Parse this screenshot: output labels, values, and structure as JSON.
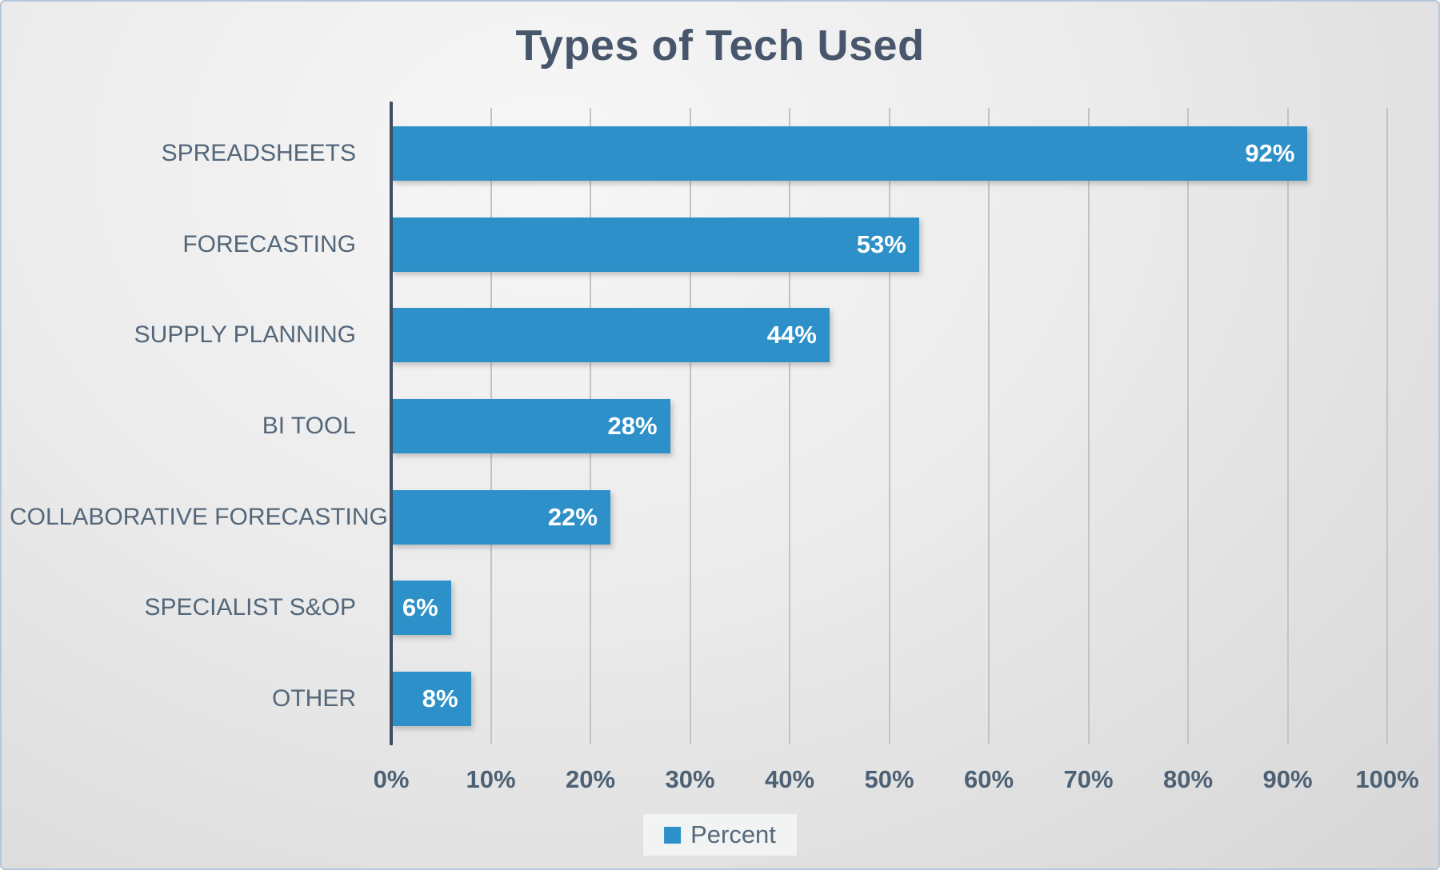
{
  "chart_data": {
    "type": "bar",
    "orientation": "horizontal",
    "title": "Types of Tech Used",
    "categories": [
      "SPREADSHEETS",
      "FORECASTING",
      "SUPPLY PLANNING",
      "BI TOOL",
      "COLLABORATIVE FORECASTING",
      "SPECIALIST S&OP",
      "OTHER"
    ],
    "values": [
      92,
      53,
      44,
      28,
      22,
      6,
      8
    ],
    "value_labels": [
      "92%",
      "53%",
      "44%",
      "28%",
      "22%",
      "6%",
      "8%"
    ],
    "series_name": "Percent",
    "x_ticks": [
      "0%",
      "10%",
      "20%",
      "30%",
      "40%",
      "50%",
      "60%",
      "70%",
      "80%",
      "90%",
      "100%"
    ],
    "xlim": [
      0,
      100
    ],
    "grid": true,
    "legend_position": "bottom",
    "colors": {
      "bar": "#2d90c9",
      "title": "#47566b",
      "category_label": "#54677a",
      "tick_label": "#4d6175",
      "axis_line": "#3e4e63",
      "gridline": "#c1c3c5",
      "value_label": "#ffffff",
      "canvas_border": "#b5c8da"
    }
  },
  "legend": {
    "label": "Percent"
  }
}
